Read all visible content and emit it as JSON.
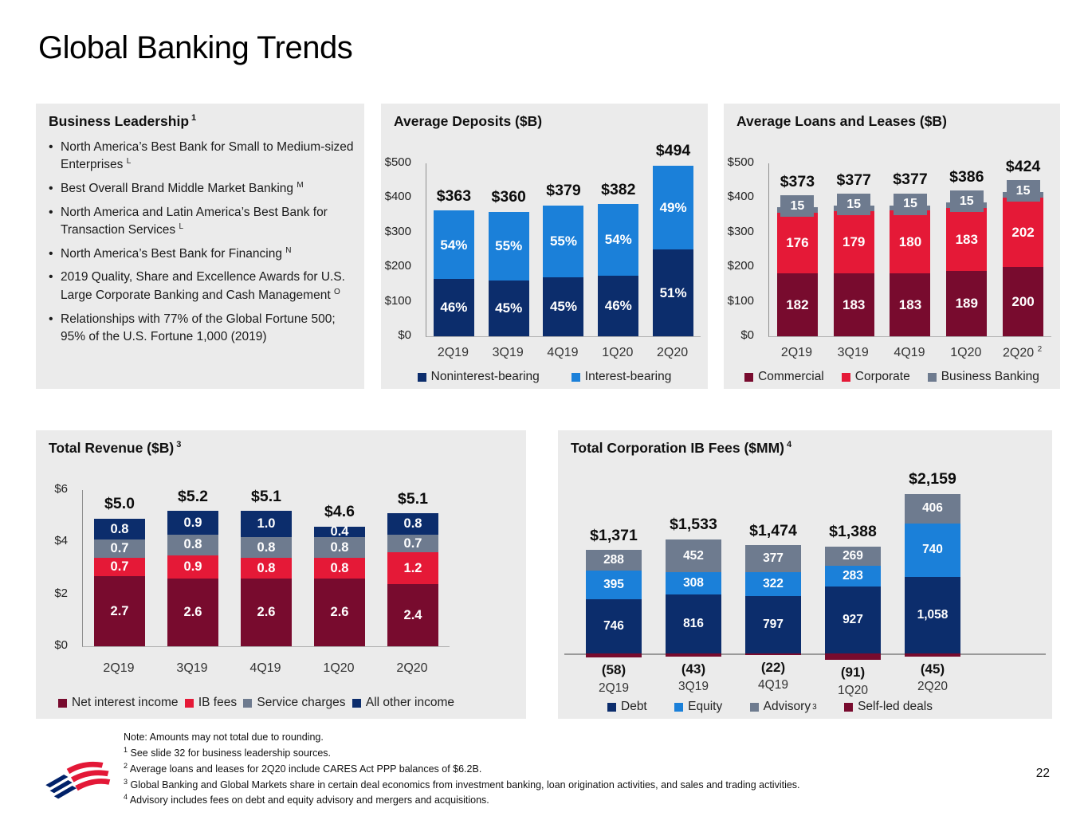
{
  "title": "Global Banking Trends",
  "page_number": "22",
  "colors": {
    "navy": "#0c2d6c",
    "blue": "#1b80d9",
    "red": "#e51937",
    "maroon": "#780b2e",
    "gray": "#6e7b8f",
    "panel_bg": "#ebebeb",
    "logo_blue": "#012169",
    "logo_red": "#e31837"
  },
  "leadership": {
    "title": "Business Leadership",
    "title_sup": "1",
    "bullets": [
      {
        "text": "North America’s Best Bank for Small to Medium-sized Enterprises",
        "sup": "L"
      },
      {
        "text": "Best Overall Brand Middle Market Banking",
        "sup": "M"
      },
      {
        "text": "North America and Latin America’s Best Bank for Transaction Services",
        "sup": "L"
      },
      {
        "text": "North America’s Best Bank for Financing",
        "sup": "N"
      },
      {
        "text": "2019 Quality, Share and Excellence Awards for U.S. Large Corporate Banking and Cash Management",
        "sup": "O"
      },
      {
        "text": "Relationships with 77% of the Global Fortune 500; 95% of the U.S. Fortune 1,000 (2019)",
        "sup": ""
      }
    ]
  },
  "chart_data": [
    {
      "id": "deposits",
      "type": "bar",
      "stacked": true,
      "title": "Average Deposits ($B)",
      "categories": [
        "2Q19",
        "3Q19",
        "4Q19",
        "1Q20",
        "2Q20"
      ],
      "totals": [
        "$363",
        "$360",
        "$379",
        "$382",
        "$494"
      ],
      "ylim": [
        0,
        500
      ],
      "yticks": [
        "$500",
        "$400",
        "$300",
        "$200",
        "$100",
        "$0"
      ],
      "series": [
        {
          "name": "Noninterest-bearing",
          "color_key": "navy",
          "values": [
            167,
            162,
            171,
            176,
            252
          ],
          "labels": [
            "46%",
            "45%",
            "45%",
            "46%",
            "51%"
          ]
        },
        {
          "name": "Interest-bearing",
          "color_key": "blue",
          "values": [
            196,
            198,
            208,
            206,
            242
          ],
          "labels": [
            "54%",
            "55%",
            "55%",
            "54%",
            "49%"
          ]
        }
      ],
      "legend": [
        {
          "label": "Noninterest-bearing",
          "color_key": "navy"
        },
        {
          "label": "Interest-bearing",
          "color_key": "blue"
        }
      ]
    },
    {
      "id": "loans",
      "type": "bar",
      "stacked": true,
      "title": "Average Loans and Leases ($B)",
      "categories": [
        "2Q19",
        "3Q19",
        "4Q19",
        "1Q20",
        "2Q20"
      ],
      "cat_sups": [
        "",
        "",
        "",
        "",
        "2"
      ],
      "totals": [
        "$373",
        "$377",
        "$377",
        "$386",
        "$424"
      ],
      "ylim": [
        0,
        500
      ],
      "yticks": [
        "$500",
        "$400",
        "$300",
        "$200",
        "$100",
        "$0"
      ],
      "series": [
        {
          "name": "Commercial",
          "color_key": "maroon",
          "values": [
            182,
            183,
            183,
            189,
            200
          ],
          "labels": [
            "182",
            "183",
            "183",
            "189",
            "200"
          ]
        },
        {
          "name": "Corporate",
          "color_key": "red",
          "values": [
            176,
            179,
            180,
            183,
            202
          ],
          "labels": [
            "176",
            "179",
            "180",
            "183",
            "202"
          ]
        },
        {
          "name": "Business Banking",
          "color_key": "gray",
          "values": [
            15,
            15,
            15,
            15,
            15
          ],
          "labels": [
            "15",
            "15",
            "15",
            "15",
            "15"
          ]
        }
      ],
      "legend": [
        {
          "label": "Commercial",
          "color_key": "maroon"
        },
        {
          "label": "Corporate",
          "color_key": "red"
        },
        {
          "label": "Business Banking",
          "color_key": "gray"
        }
      ]
    },
    {
      "id": "revenue",
      "type": "bar",
      "stacked": true,
      "title": "Total Revenue ($B)",
      "title_sup": "3",
      "categories": [
        "2Q19",
        "3Q19",
        "4Q19",
        "1Q20",
        "2Q20"
      ],
      "totals": [
        "$5.0",
        "$5.2",
        "$5.1",
        "$4.6",
        "$5.1"
      ],
      "ylim": [
        0,
        6
      ],
      "yticks": [
        "$6",
        "$4",
        "$2",
        "$0"
      ],
      "series": [
        {
          "name": "Net interest income",
          "color_key": "maroon",
          "values": [
            2.7,
            2.6,
            2.6,
            2.6,
            2.4
          ],
          "labels": [
            "2.7",
            "2.6",
            "2.6",
            "2.6",
            "2.4"
          ]
        },
        {
          "name": "IB fees",
          "color_key": "red",
          "values": [
            0.7,
            0.9,
            0.8,
            0.8,
            1.2
          ],
          "labels": [
            "0.7",
            "0.9",
            "0.8",
            "0.8",
            "1.2"
          ]
        },
        {
          "name": "Service charges",
          "color_key": "gray",
          "values": [
            0.7,
            0.8,
            0.8,
            0.8,
            0.7
          ],
          "labels": [
            "0.7",
            "0.8",
            "0.8",
            "0.8",
            "0.7"
          ]
        },
        {
          "name": "All other income",
          "color_key": "navy",
          "values": [
            0.8,
            0.9,
            1.0,
            0.4,
            0.8
          ],
          "labels": [
            "0.8",
            "0.9",
            "1.0",
            "0.4",
            "0.8"
          ]
        }
      ],
      "legend": [
        {
          "label": "Net interest income",
          "color_key": "maroon"
        },
        {
          "label": "IB fees",
          "color_key": "red"
        },
        {
          "label": "Service charges",
          "color_key": "gray"
        },
        {
          "label": "All other income",
          "color_key": "navy"
        }
      ]
    },
    {
      "id": "ibfees",
      "type": "bar",
      "stacked": true,
      "title": "Total Corporation IB Fees ($MM)",
      "title_sup": "4",
      "categories": [
        "2Q19",
        "3Q19",
        "4Q19",
        "1Q20",
        "2Q20"
      ],
      "totals": [
        "$1,371",
        "$1,533",
        "$1,474",
        "$1,388",
        "$2,159"
      ],
      "ylim": [
        0,
        2200
      ],
      "series": [
        {
          "name": "Debt",
          "color_key": "navy",
          "values": [
            746,
            816,
            797,
            927,
            1058
          ],
          "labels": [
            "746",
            "816",
            "797",
            "927",
            "1,058"
          ]
        },
        {
          "name": "Equity",
          "color_key": "blue",
          "values": [
            395,
            308,
            322,
            283,
            740
          ],
          "labels": [
            "395",
            "308",
            "322",
            "283",
            "740"
          ]
        },
        {
          "name": "Advisory",
          "color_key": "gray",
          "values": [
            288,
            452,
            377,
            269,
            406
          ],
          "labels": [
            "288",
            "452",
            "377",
            "269",
            "406"
          ]
        },
        {
          "name": "Self-led deals",
          "color_key": "maroon",
          "negative": true,
          "values": [
            -58,
            -43,
            -22,
            -91,
            -45
          ],
          "labels": [
            "(58)",
            "(43)",
            "(22)",
            "(91)",
            "(45)"
          ]
        }
      ],
      "legend": [
        {
          "label": "Debt",
          "color_key": "navy"
        },
        {
          "label": "Equity",
          "color_key": "blue"
        },
        {
          "label": "Advisory",
          "color_key": "gray",
          "sup": "3"
        },
        {
          "label": "Self-led deals",
          "color_key": "maroon"
        }
      ]
    }
  ],
  "footnotes": [
    {
      "sup": "",
      "text": "Note: Amounts may not total due to rounding."
    },
    {
      "sup": "1",
      "text": "See slide 32 for business leadership sources."
    },
    {
      "sup": "2",
      "text": "Average loans and leases for 2Q20 include CARES Act PPP balances of $6.2B."
    },
    {
      "sup": "3",
      "text": "Global Banking and Global Markets share in certain deal economics from investment banking, loan origination activities, and sales and trading activities."
    },
    {
      "sup": "4",
      "text": "Advisory includes fees on debt and equity advisory and mergers and acquisitions."
    }
  ]
}
